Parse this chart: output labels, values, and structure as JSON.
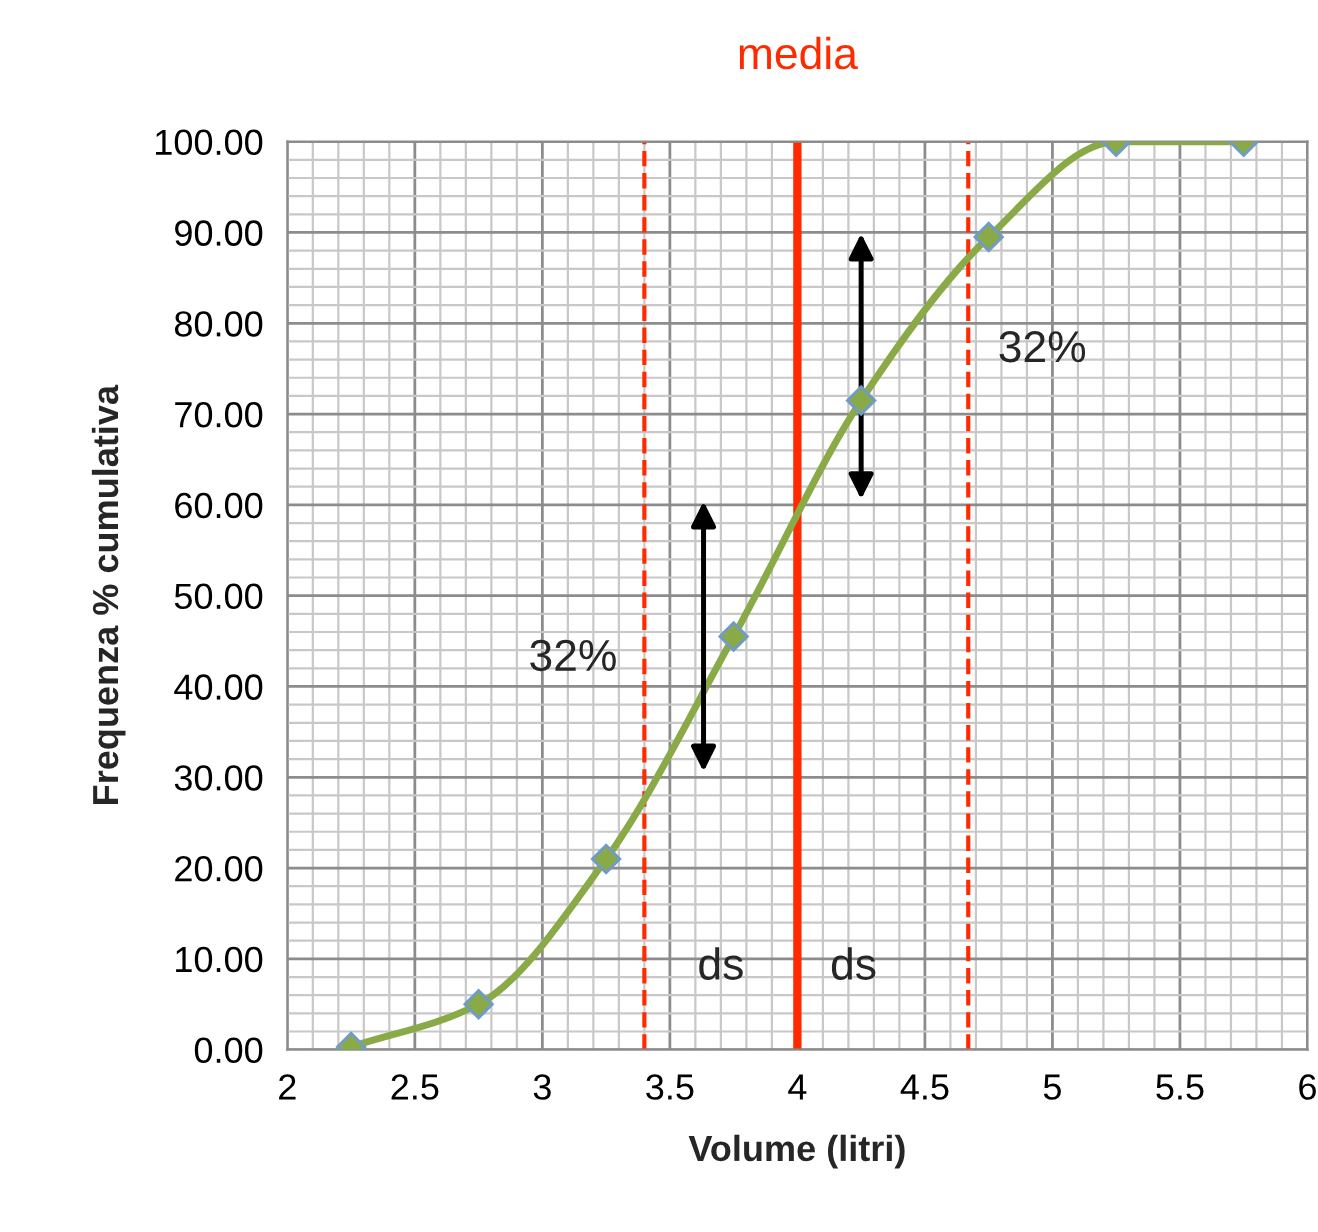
{
  "chart_data": {
    "type": "line",
    "xlabel": "Volume (litri)",
    "ylabel": "Frequenza % cumulativa",
    "x": [
      2.25,
      2.75,
      3.25,
      3.75,
      4.25,
      4.75,
      5.25,
      5.75
    ],
    "series": [
      {
        "color": "#8aaa48",
        "values": [
          0.3,
          5,
          21,
          45.5,
          71.5,
          89.5,
          100,
          100
        ]
      }
    ],
    "marker": "diamond",
    "line_style": "solid",
    "xlim": [
      2,
      6
    ],
    "xticks": [
      2,
      2.5,
      3,
      3.5,
      4,
      4.5,
      5,
      5.5,
      6
    ],
    "ylim": [
      0,
      100
    ],
    "yticks": [
      {
        "value": 0,
        "label": "0.00"
      },
      {
        "value": 10,
        "label": "10.00"
      },
      {
        "value": 20,
        "label": "20.00"
      },
      {
        "value": 30,
        "label": "30.00"
      },
      {
        "value": 40,
        "label": "40.00"
      },
      {
        "value": 50,
        "label": "50.00"
      },
      {
        "value": 60,
        "label": "60.00"
      },
      {
        "value": 70,
        "label": "70.00"
      },
      {
        "value": 80,
        "label": "80.00"
      },
      {
        "value": 90,
        "label": "90.00"
      },
      {
        "value": 100,
        "label": "100.00"
      }
    ],
    "grid": true,
    "ref_lines": [
      {
        "axis": "x",
        "value": 4.0,
        "label": "media",
        "color": "#ff2a00",
        "line_style": "solid"
      },
      {
        "axis": "x",
        "value": 3.4,
        "color": "#ff2a00",
        "line_style": "dashed"
      },
      {
        "axis": "x",
        "value": 4.67,
        "color": "#ff2a00",
        "line_style": "dashed"
      }
    ],
    "annotations": [
      "32%",
      "32%",
      "ds",
      "ds"
    ]
  }
}
